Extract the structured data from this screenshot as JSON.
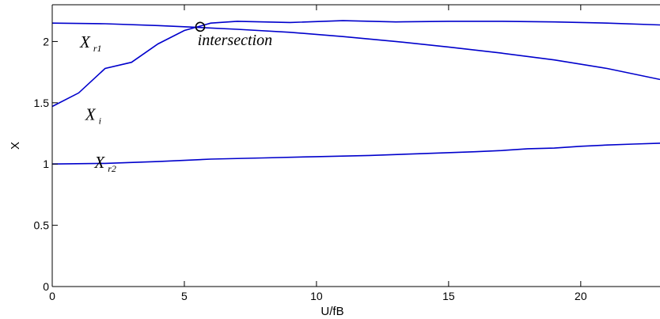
{
  "chart_data": {
    "type": "line",
    "xlabel": "U/fB",
    "ylabel": "X",
    "xlim": [
      0,
      23
    ],
    "ylim": [
      0,
      2.3
    ],
    "xticks": [
      "0",
      "5",
      "10",
      "15",
      "20"
    ],
    "yticks": [
      "0",
      "0.5",
      "1",
      "1.5",
      "2"
    ],
    "grid": false,
    "colors": {
      "series": "#0000cc",
      "axis": "#000000",
      "marker": "#000000"
    },
    "series": [
      {
        "id": "xr1",
        "x": [
          0,
          2,
          4,
          5.5,
          7,
          9,
          11,
          13,
          15,
          17,
          19,
          21,
          23
        ],
        "y": [
          2.15,
          2.145,
          2.13,
          2.115,
          2.1,
          2.075,
          2.04,
          2.0,
          1.955,
          1.905,
          1.85,
          1.78,
          1.69
        ]
      },
      {
        "id": "xi",
        "x": [
          0,
          1,
          2,
          3,
          4,
          5,
          5.5,
          6,
          7,
          9,
          11,
          13,
          15,
          17,
          19,
          21,
          23
        ],
        "y": [
          1.47,
          1.58,
          1.78,
          1.83,
          1.98,
          2.09,
          2.12,
          2.15,
          2.165,
          2.155,
          2.17,
          2.16,
          2.165,
          2.165,
          2.16,
          2.15,
          2.135
        ]
      },
      {
        "id": "xr2",
        "x": [
          0,
          2,
          4,
          6,
          8,
          10,
          12,
          14,
          16,
          17,
          18,
          19,
          20,
          21,
          22,
          23
        ],
        "y": [
          1.0,
          1.005,
          1.02,
          1.04,
          1.05,
          1.06,
          1.07,
          1.085,
          1.1,
          1.11,
          1.125,
          1.13,
          1.145,
          1.155,
          1.163,
          1.17
        ]
      }
    ],
    "annotations": [
      {
        "id": "ann-xr1",
        "base": "X",
        "sub": "r1",
        "x": 1.05,
        "y": 1.95
      },
      {
        "id": "ann-xi",
        "base": "X",
        "sub": "i",
        "x": 1.25,
        "y": 1.36
      },
      {
        "id": "ann-xr2",
        "base": "X",
        "sub": "r2",
        "x": 1.6,
        "y": 0.97
      },
      {
        "id": "ann-intersection",
        "base": "intersection",
        "sub": "",
        "x": 5.5,
        "y": 1.97
      }
    ],
    "marker": {
      "x": 5.6,
      "y": 2.12,
      "shape": "open-circle"
    }
  }
}
